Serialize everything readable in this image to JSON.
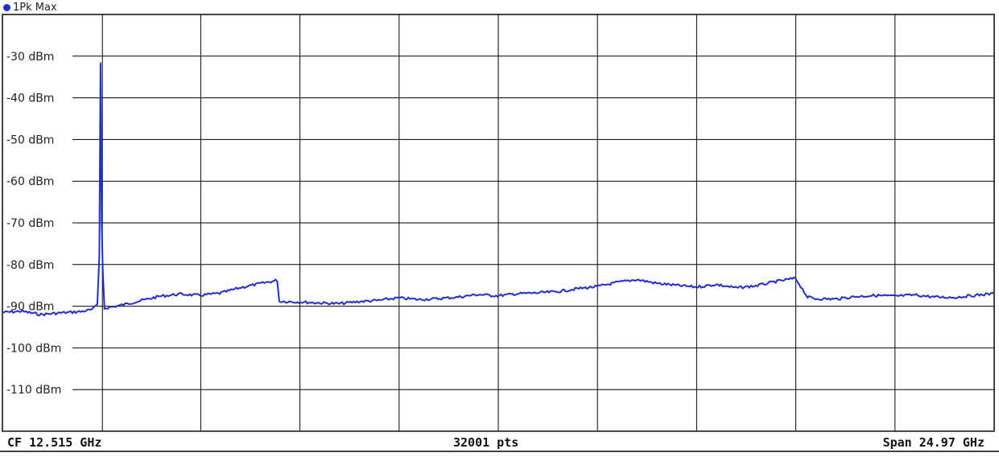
{
  "trace_label": "1Pk Max",
  "footer": {
    "center_freq": "CF 12.515 GHz",
    "points": "32001 pts",
    "span": "Span 24.97 GHz"
  },
  "colors": {
    "trace": "#1f2fcf",
    "grid": "#000000",
    "background": "#ffffff"
  },
  "chart_data": {
    "type": "line",
    "title": "",
    "xlabel": "",
    "ylabel": "",
    "yunit": "dBm",
    "ytick_labels": [
      "-30 dBm",
      "-40 dBm",
      "-50 dBm",
      "-60 dBm",
      "-70 dBm",
      "-80 dBm",
      "-90 dBm",
      "-100 dBm",
      "-110 dBm"
    ],
    "yticks": [
      -30,
      -40,
      -50,
      -60,
      -70,
      -80,
      -90,
      -100,
      -110
    ],
    "ylim": [
      -120,
      -20
    ],
    "x_range_ghz": [
      0.03,
      25.0
    ],
    "grid": true,
    "series": [
      {
        "points": [
          [
            0.03,
            -91.5
          ],
          [
            0.5,
            -91.2
          ],
          [
            1.0,
            -92.0
          ],
          [
            1.5,
            -91.6
          ],
          [
            2.0,
            -91.3
          ],
          [
            2.3,
            -90.8
          ],
          [
            2.42,
            -89.5
          ],
          [
            2.47,
            -78
          ],
          [
            2.5,
            -31.5
          ],
          [
            2.53,
            -70
          ],
          [
            2.56,
            -82
          ],
          [
            2.6,
            -90.5
          ],
          [
            3.0,
            -89.8
          ],
          [
            3.5,
            -88.7
          ],
          [
            4.0,
            -87.6
          ],
          [
            4.5,
            -87.1
          ],
          [
            5.0,
            -87.4
          ],
          [
            5.5,
            -86.9
          ],
          [
            6.0,
            -85.6
          ],
          [
            6.5,
            -84.6
          ],
          [
            6.95,
            -83.8
          ],
          [
            7.0,
            -88.8
          ],
          [
            7.5,
            -89.0
          ],
          [
            8.0,
            -89.2
          ],
          [
            8.5,
            -89.4
          ],
          [
            9.0,
            -88.9
          ],
          [
            9.5,
            -88.6
          ],
          [
            10.0,
            -88.0
          ],
          [
            10.5,
            -88.4
          ],
          [
            11.0,
            -88.2
          ],
          [
            11.5,
            -87.8
          ],
          [
            12.0,
            -87.2
          ],
          [
            12.5,
            -87.5
          ],
          [
            13.0,
            -87.0
          ],
          [
            13.5,
            -86.8
          ],
          [
            14.0,
            -86.5
          ],
          [
            14.5,
            -85.8
          ],
          [
            15.0,
            -85.3
          ],
          [
            15.5,
            -84.3
          ],
          [
            16.0,
            -83.6
          ],
          [
            16.5,
            -84.5
          ],
          [
            17.0,
            -85.0
          ],
          [
            17.5,
            -85.4
          ],
          [
            18.0,
            -84.8
          ],
          [
            18.5,
            -85.6
          ],
          [
            19.0,
            -85.1
          ],
          [
            19.5,
            -84.1
          ],
          [
            20.0,
            -83.3
          ],
          [
            20.3,
            -87.8
          ],
          [
            20.5,
            -88.2
          ],
          [
            21.0,
            -88.3
          ],
          [
            21.5,
            -87.7
          ],
          [
            22.0,
            -87.4
          ],
          [
            22.5,
            -87.6
          ],
          [
            23.0,
            -87.3
          ],
          [
            23.5,
            -87.8
          ],
          [
            24.0,
            -87.9
          ],
          [
            24.5,
            -87.4
          ],
          [
            25.0,
            -87.0
          ]
        ]
      }
    ]
  }
}
